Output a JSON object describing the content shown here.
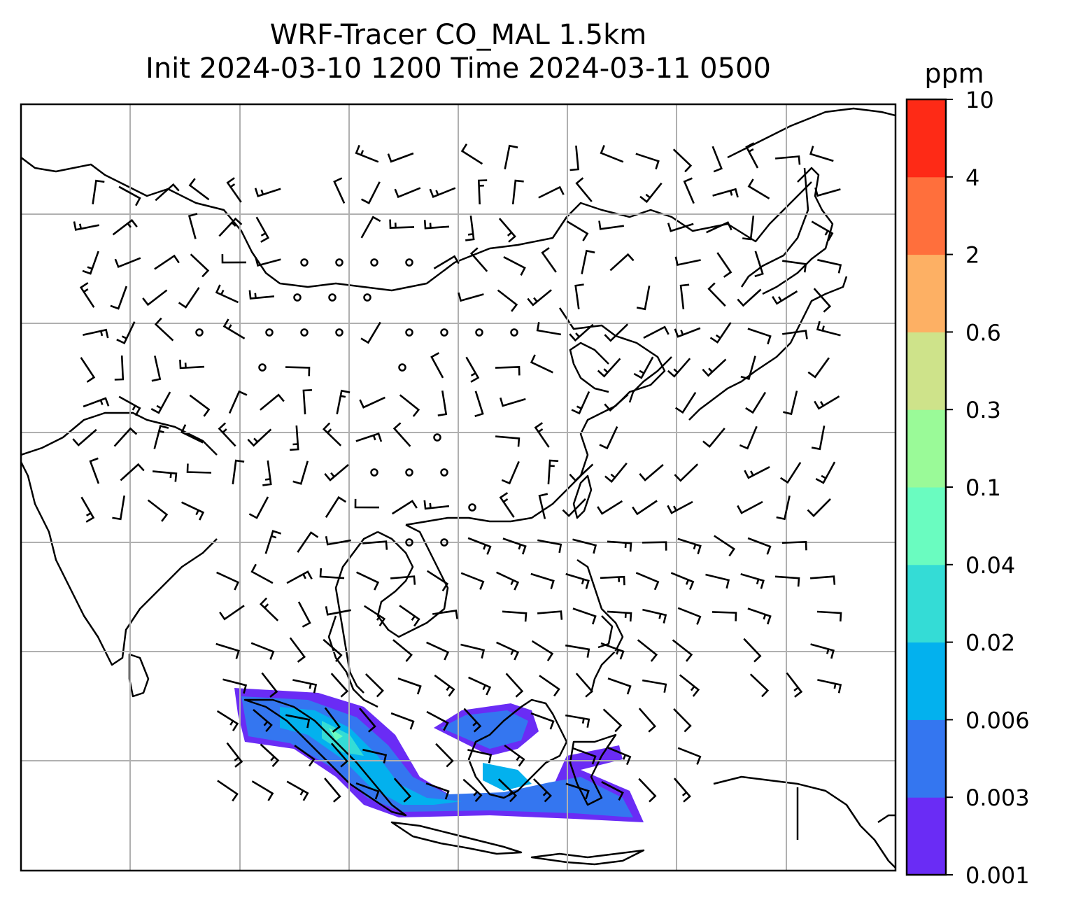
{
  "title": {
    "line1": "WRF-Tracer CO_MAL 1.5km",
    "line2": "Init 2024-03-10 1200 Time 2024-03-11 0500"
  },
  "colorbar": {
    "unit": "ppm",
    "levels": [
      "0.001",
      "0.003",
      "0.006",
      "0.02",
      "0.04",
      "0.1",
      "0.3",
      "0.6",
      "2",
      "4",
      "10"
    ],
    "colors": [
      "#6a2cf5",
      "#3476f0",
      "#03b1ee",
      "#34dcd6",
      "#6afcc0",
      "#9afa98",
      "#cee38a",
      "#fdb064",
      "#ff6f3c",
      "#fe2a16"
    ]
  }
}
